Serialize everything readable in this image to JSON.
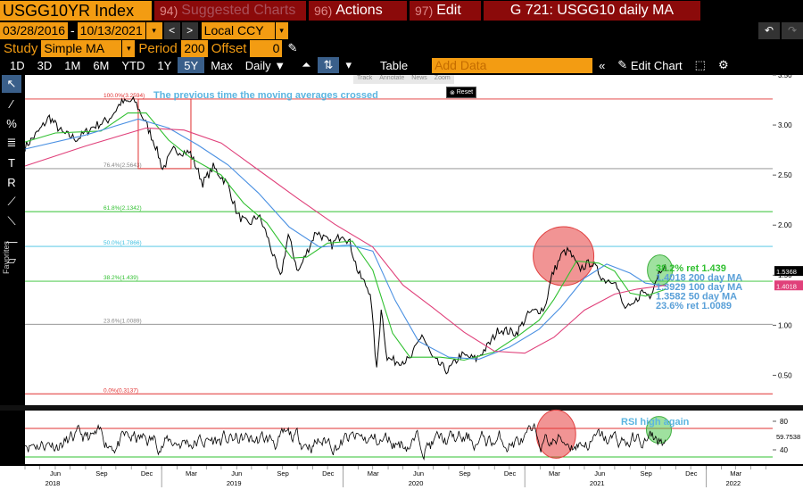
{
  "header": {
    "ticker": "USGG10YR Index",
    "suggested_num": "94)",
    "suggested_label": "Suggested Charts",
    "actions_num": "96)",
    "actions_label": "Actions",
    "edit_num": "97)",
    "edit_label": "Edit",
    "chart_id": "G 721: USGG10 daily MA"
  },
  "dates": {
    "start": "03/28/2016",
    "sep": "-",
    "end": "10/13/2021",
    "currency": "Local CCY"
  },
  "study": {
    "label": "Study",
    "value": "Simple MA",
    "period_label": "Period",
    "period": "200",
    "offset_label": "Offset",
    "offset": "0"
  },
  "toolbar": {
    "ranges": [
      "1D",
      "3D",
      "1M",
      "6M",
      "YTD",
      "1Y",
      "5Y",
      "Max"
    ],
    "active_range": "5Y",
    "frequency": "Daily",
    "table_label": "Table",
    "add_data_placeholder": "Add Data",
    "edit_chart_label": "Edit Chart"
  },
  "annot_bar": [
    "Track",
    "Annotate",
    "News",
    "Zoom"
  ],
  "reset_label": "Reset",
  "favorites_label": "Favorites",
  "chart_data": {
    "type": "line",
    "x_range": [
      "2018-04-01",
      "2022-05-15"
    ],
    "x_tick_labels": [
      "Jun",
      "Sep",
      "Dec",
      "Mar",
      "Jun",
      "Sep",
      "Dec",
      "Mar",
      "Jun",
      "Sep",
      "Dec",
      "Mar",
      "Jun",
      "Sep",
      "Dec",
      "Mar"
    ],
    "year_labels": [
      "2018",
      "2019",
      "2020",
      "2021",
      "2022"
    ],
    "ylim": [
      0.2,
      3.5
    ],
    "y_ticks": [
      "3.50",
      "3.00",
      "2.50",
      "2.00",
      "1.50",
      "1.00",
      "0.50"
    ],
    "annotation": "The previous time the moving averages crossed",
    "fib_levels": [
      {
        "label": "100.0%(3.2594)",
        "value": 3.2594,
        "color": "#e03030"
      },
      {
        "label": "76.4%(2.5643)",
        "value": 2.5643,
        "color": "#888888"
      },
      {
        "label": "61.8%(2.1342)",
        "value": 2.1342,
        "color": "#30c030"
      },
      {
        "label": "50.0%(1.7866)",
        "value": 1.7866,
        "color": "#40c0e0"
      },
      {
        "label": "38.2%(1.439)",
        "value": 1.439,
        "color": "#30c030"
      },
      {
        "label": "23.6%(1.0089)",
        "value": 1.0089,
        "color": "#888888"
      },
      {
        "label": "0.0%(0.3137)",
        "value": 0.3137,
        "color": "#e03030"
      }
    ],
    "legend": [
      "38.2% ret 1.439",
      "1.4018 200 day MA",
      "1.3929 100 day MA",
      "1.3582 50 day MA",
      "23.6% ret 1.0089"
    ],
    "last_values": [
      "1.5368",
      "1.4018"
    ],
    "series": [
      {
        "name": "USGG10YR",
        "color": "#ffffff",
        "points": [
          [
            "2018-04-01",
            2.78
          ],
          [
            "2018-05-01",
            2.95
          ],
          [
            "2018-05-20",
            3.08
          ],
          [
            "2018-06-15",
            2.92
          ],
          [
            "2018-07-15",
            2.86
          ],
          [
            "2018-08-15",
            2.98
          ],
          [
            "2018-09-15",
            3.05
          ],
          [
            "2018-10-01",
            3.15
          ],
          [
            "2018-10-10",
            3.22
          ],
          [
            "2018-11-08",
            3.24
          ],
          [
            "2018-11-30",
            3.02
          ],
          [
            "2018-12-20",
            2.79
          ],
          [
            "2019-01-03",
            2.56
          ],
          [
            "2019-01-25",
            2.75
          ],
          [
            "2019-02-28",
            2.72
          ],
          [
            "2019-03-25",
            2.42
          ],
          [
            "2019-04-15",
            2.58
          ],
          [
            "2019-05-15",
            2.4
          ],
          [
            "2019-06-03",
            2.1
          ],
          [
            "2019-06-25",
            2.0
          ],
          [
            "2019-07-15",
            2.1
          ],
          [
            "2019-08-01",
            1.9
          ],
          [
            "2019-08-28",
            1.47
          ],
          [
            "2019-09-13",
            1.9
          ],
          [
            "2019-10-03",
            1.53
          ],
          [
            "2019-11-08",
            1.94
          ],
          [
            "2019-12-10",
            1.8
          ],
          [
            "2019-12-31",
            1.92
          ],
          [
            "2020-01-15",
            1.82
          ],
          [
            "2020-02-01",
            1.52
          ],
          [
            "2020-02-25",
            1.33
          ],
          [
            "2020-03-09",
            0.54
          ],
          [
            "2020-03-18",
            1.18
          ],
          [
            "2020-03-30",
            0.67
          ],
          [
            "2020-04-15",
            0.64
          ],
          [
            "2020-05-15",
            0.65
          ],
          [
            "2020-06-08",
            0.91
          ],
          [
            "2020-06-30",
            0.66
          ],
          [
            "2020-07-30",
            0.54
          ],
          [
            "2020-08-25",
            0.7
          ],
          [
            "2020-09-25",
            0.66
          ],
          [
            "2020-10-20",
            0.8
          ],
          [
            "2020-11-10",
            0.96
          ],
          [
            "2020-12-15",
            0.92
          ],
          [
            "2021-01-10",
            1.12
          ],
          [
            "2021-02-10",
            1.17
          ],
          [
            "2021-02-25",
            1.5
          ],
          [
            "2021-03-18",
            1.72
          ],
          [
            "2021-03-31",
            1.74
          ],
          [
            "2021-04-20",
            1.56
          ],
          [
            "2021-05-15",
            1.63
          ],
          [
            "2021-06-10",
            1.45
          ],
          [
            "2021-06-30",
            1.46
          ],
          [
            "2021-07-19",
            1.18
          ],
          [
            "2021-08-04",
            1.17
          ],
          [
            "2021-08-25",
            1.34
          ],
          [
            "2021-09-10",
            1.3
          ],
          [
            "2021-09-28",
            1.53
          ],
          [
            "2021-10-08",
            1.61
          ],
          [
            "2021-10-13",
            1.54
          ]
        ]
      },
      {
        "name": "50 day MA",
        "color": "#30c030",
        "points": [
          [
            "2018-04-01",
            2.83
          ],
          [
            "2018-06-01",
            2.92
          ],
          [
            "2018-09-01",
            2.94
          ],
          [
            "2018-10-25",
            3.12
          ],
          [
            "2018-12-01",
            3.12
          ],
          [
            "2019-01-15",
            2.85
          ],
          [
            "2019-03-01",
            2.67
          ],
          [
            "2019-05-01",
            2.5
          ],
          [
            "2019-06-15",
            2.22
          ],
          [
            "2019-08-01",
            2.02
          ],
          [
            "2019-09-20",
            1.67
          ],
          [
            "2019-10-20",
            1.68
          ],
          [
            "2019-12-01",
            1.82
          ],
          [
            "2020-01-20",
            1.84
          ],
          [
            "2020-03-01",
            1.55
          ],
          [
            "2020-04-10",
            0.92
          ],
          [
            "2020-05-15",
            0.68
          ],
          [
            "2020-07-15",
            0.68
          ],
          [
            "2020-09-01",
            0.65
          ],
          [
            "2020-10-30",
            0.73
          ],
          [
            "2020-12-15",
            0.88
          ],
          [
            "2021-01-30",
            1.05
          ],
          [
            "2021-03-01",
            1.26
          ],
          [
            "2021-04-15",
            1.64
          ],
          [
            "2021-05-30",
            1.62
          ],
          [
            "2021-07-01",
            1.54
          ],
          [
            "2021-08-01",
            1.32
          ],
          [
            "2021-09-01",
            1.29
          ],
          [
            "2021-10-13",
            1.36
          ]
        ]
      },
      {
        "name": "100 day MA",
        "color": "#4a90e2",
        "points": [
          [
            "2018-04-01",
            2.76
          ],
          [
            "2018-08-01",
            2.9
          ],
          [
            "2018-11-15",
            3.06
          ],
          [
            "2019-01-15",
            2.97
          ],
          [
            "2019-03-15",
            2.8
          ],
          [
            "2019-05-15",
            2.6
          ],
          [
            "2019-07-15",
            2.32
          ],
          [
            "2019-09-15",
            1.98
          ],
          [
            "2019-11-15",
            1.78
          ],
          [
            "2020-01-15",
            1.8
          ],
          [
            "2020-03-01",
            1.74
          ],
          [
            "2020-04-15",
            1.25
          ],
          [
            "2020-06-01",
            0.84
          ],
          [
            "2020-08-01",
            0.68
          ],
          [
            "2020-10-01",
            0.66
          ],
          [
            "2020-12-01",
            0.78
          ],
          [
            "2021-01-30",
            0.96
          ],
          [
            "2021-03-15",
            1.18
          ],
          [
            "2021-05-01",
            1.47
          ],
          [
            "2021-06-15",
            1.61
          ],
          [
            "2021-08-01",
            1.52
          ],
          [
            "2021-09-01",
            1.42
          ],
          [
            "2021-10-13",
            1.39
          ]
        ]
      },
      {
        "name": "200 day MA",
        "color": "#e0407a",
        "points": [
          [
            "2018-04-01",
            2.59
          ],
          [
            "2018-08-01",
            2.79
          ],
          [
            "2018-12-01",
            2.97
          ],
          [
            "2019-02-15",
            2.95
          ],
          [
            "2019-05-01",
            2.82
          ],
          [
            "2019-07-15",
            2.55
          ],
          [
            "2019-10-01",
            2.27
          ],
          [
            "2019-12-15",
            2.01
          ],
          [
            "2020-03-01",
            1.78
          ],
          [
            "2020-05-01",
            1.4
          ],
          [
            "2020-07-01",
            1.17
          ],
          [
            "2020-09-01",
            0.93
          ],
          [
            "2020-11-01",
            0.74
          ],
          [
            "2021-01-01",
            0.72
          ],
          [
            "2021-03-01",
            0.88
          ],
          [
            "2021-05-01",
            1.15
          ],
          [
            "2021-07-01",
            1.31
          ],
          [
            "2021-08-15",
            1.36
          ],
          [
            "2021-10-13",
            1.4
          ]
        ]
      }
    ],
    "rsi": {
      "name": "RSI",
      "ylim": [
        20,
        95
      ],
      "y_ticks": [
        "80",
        "40"
      ],
      "upper_line": 70,
      "lower_line": 30,
      "last_value": "59.7538",
      "annotation": "RSI high again"
    }
  }
}
